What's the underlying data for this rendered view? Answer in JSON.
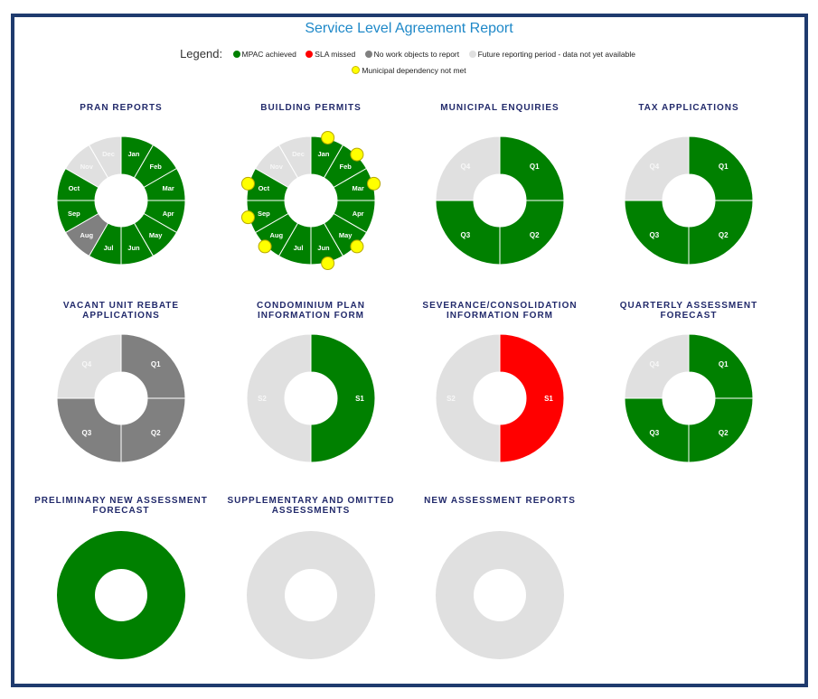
{
  "title": "Service Level Agreement Report",
  "legend": {
    "label": "Legend:",
    "items": [
      {
        "label": "MPAC achieved",
        "color": "#008000"
      },
      {
        "label": "SLA missed",
        "color": "#ff0000"
      },
      {
        "label": "No work objects to report",
        "color": "#808080"
      },
      {
        "label": "Future reporting period - data not yet available",
        "color": "#e0e0e0"
      },
      {
        "label": "Municipal dependency not met",
        "color": "#ffff00"
      }
    ]
  },
  "chart_data": [
    {
      "type": "donut",
      "title": "PRAN REPORTS",
      "segments": [
        {
          "label": "Jan",
          "status": "achieved"
        },
        {
          "label": "Feb",
          "status": "achieved"
        },
        {
          "label": "Mar",
          "status": "achieved"
        },
        {
          "label": "Apr",
          "status": "achieved"
        },
        {
          "label": "May",
          "status": "achieved"
        },
        {
          "label": "Jun",
          "status": "achieved"
        },
        {
          "label": "Jul",
          "status": "achieved"
        },
        {
          "label": "Aug",
          "status": "no_work"
        },
        {
          "label": "Sep",
          "status": "achieved"
        },
        {
          "label": "Oct",
          "status": "achieved"
        },
        {
          "label": "Nov",
          "status": "future"
        },
        {
          "label": "Dec",
          "status": "future"
        }
      ]
    },
    {
      "type": "donut",
      "title": "BUILDING PERMITS",
      "segments": [
        {
          "label": "Jan",
          "status": "achieved",
          "dependency_not_met": true
        },
        {
          "label": "Feb",
          "status": "achieved",
          "dependency_not_met": true
        },
        {
          "label": "Mar",
          "status": "achieved",
          "dependency_not_met": true
        },
        {
          "label": "Apr",
          "status": "achieved"
        },
        {
          "label": "May",
          "status": "achieved",
          "dependency_not_met": true
        },
        {
          "label": "Jun",
          "status": "achieved",
          "dependency_not_met": true
        },
        {
          "label": "Jul",
          "status": "achieved"
        },
        {
          "label": "Aug",
          "status": "achieved",
          "dependency_not_met": true
        },
        {
          "label": "Sep",
          "status": "achieved",
          "dependency_not_met": true
        },
        {
          "label": "Oct",
          "status": "achieved",
          "dependency_not_met": true
        },
        {
          "label": "Nov",
          "status": "future"
        },
        {
          "label": "Dec",
          "status": "future"
        }
      ]
    },
    {
      "type": "donut",
      "title": "MUNICIPAL ENQUIRIES",
      "segments": [
        {
          "label": "Q1",
          "status": "achieved"
        },
        {
          "label": "Q2",
          "status": "achieved"
        },
        {
          "label": "Q3",
          "status": "achieved"
        },
        {
          "label": "Q4",
          "status": "future"
        }
      ]
    },
    {
      "type": "donut",
      "title": "TAX APPLICATIONS",
      "segments": [
        {
          "label": "Q1",
          "status": "achieved"
        },
        {
          "label": "Q2",
          "status": "achieved"
        },
        {
          "label": "Q3",
          "status": "achieved"
        },
        {
          "label": "Q4",
          "status": "future"
        }
      ]
    },
    {
      "type": "donut",
      "title": "VACANT UNIT REBATE APPLICATIONS",
      "segments": [
        {
          "label": "Q1",
          "status": "no_work"
        },
        {
          "label": "Q2",
          "status": "no_work"
        },
        {
          "label": "Q3",
          "status": "no_work"
        },
        {
          "label": "Q4",
          "status": "future"
        }
      ]
    },
    {
      "type": "donut",
      "title": "CONDOMINIUM PLAN INFORMATION FORM",
      "segments": [
        {
          "label": "S1",
          "status": "achieved"
        },
        {
          "label": "S2",
          "status": "future"
        }
      ]
    },
    {
      "type": "donut",
      "title": "SEVERANCE/CONSOLIDATION INFORMATION FORM",
      "segments": [
        {
          "label": "S1",
          "status": "missed"
        },
        {
          "label": "S2",
          "status": "future"
        }
      ]
    },
    {
      "type": "donut",
      "title": "QUARTERLY ASSESSMENT FORECAST",
      "segments": [
        {
          "label": "Q1",
          "status": "achieved"
        },
        {
          "label": "Q2",
          "status": "achieved"
        },
        {
          "label": "Q3",
          "status": "achieved"
        },
        {
          "label": "Q4",
          "status": "future"
        }
      ]
    },
    {
      "type": "donut",
      "title": "PRELIMINARY NEW ASSESSMENT FORECAST",
      "segments": [
        {
          "label": "",
          "status": "achieved"
        }
      ]
    },
    {
      "type": "donut",
      "title": "SUPPLEMENTARY AND OMITTED ASSESSMENTS",
      "segments": [
        {
          "label": "",
          "status": "future"
        }
      ]
    },
    {
      "type": "donut",
      "title": "NEW ASSESSMENT REPORTS",
      "segments": [
        {
          "label": "",
          "status": "future"
        }
      ]
    }
  ],
  "status_colors": {
    "achieved": "#008000",
    "missed": "#ff0000",
    "no_work": "#808080",
    "future": "#e0e0e0",
    "dependency": "#ffff00"
  }
}
